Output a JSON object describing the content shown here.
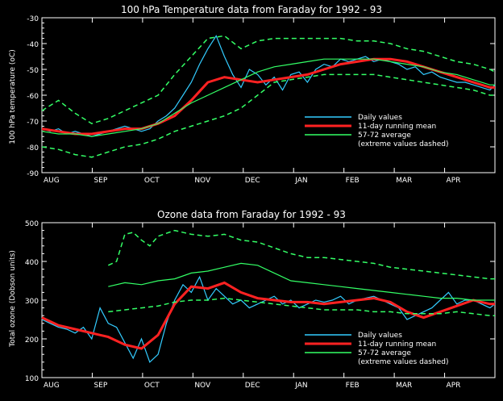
{
  "chart_data": [
    {
      "type": "line",
      "title": "100 hPa Temperature data from Faraday for 1992 - 93",
      "ylabel": "100 hPa temperature (oC)",
      "xlabel": "",
      "x_ticks": [
        "AUG",
        "SEP",
        "OCT",
        "NOV",
        "DEC",
        "JAN",
        "FEB",
        "MAR",
        "APR"
      ],
      "y_ticks": [
        "-30",
        "-40",
        "-50",
        "-60",
        "-70",
        "-80",
        "-90"
      ],
      "ylim": [
        -90,
        -30
      ],
      "xlim": [
        0,
        273
      ],
      "legend_position": "bottom-right",
      "legend": [
        {
          "label": "Daily values",
          "color": "#33ccff"
        },
        {
          "label": "11-day running mean",
          "color": "#ff2222"
        },
        {
          "label": "57-72 average",
          "color": "#33ff66"
        },
        {
          "label": "(extreme values dashed)",
          "color": ""
        }
      ],
      "series": [
        {
          "name": "Daily values",
          "color": "#33ccff",
          "x": [
            0,
            5,
            10,
            15,
            20,
            25,
            30,
            35,
            40,
            45,
            50,
            55,
            60,
            65,
            70,
            75,
            80,
            85,
            90,
            95,
            100,
            105,
            110,
            115,
            120,
            125,
            130,
            135,
            140,
            145,
            150,
            155,
            160,
            165,
            170,
            175,
            180,
            185,
            190,
            195,
            200,
            205,
            210,
            215,
            220,
            225,
            230,
            235,
            240,
            245,
            250,
            255,
            260,
            265,
            270,
            273
          ],
          "values": [
            -73,
            -74,
            -73,
            -75,
            -74,
            -75,
            -76,
            -75,
            -74,
            -73,
            -72,
            -73,
            -74,
            -73,
            -70,
            -68,
            -65,
            -60,
            -55,
            -48,
            -42,
            -37,
            -45,
            -52,
            -57,
            -50,
            -52,
            -56,
            -53,
            -58,
            -52,
            -51,
            -55,
            -50,
            -48,
            -49,
            -46,
            -47,
            -46,
            -45,
            -47,
            -46,
            -47,
            -48,
            -50,
            -49,
            -52,
            -51,
            -53,
            -54,
            -55,
            -55,
            -56,
            -57,
            -58,
            -56
          ]
        },
        {
          "name": "11-day running mean",
          "color": "#ff2222",
          "x": [
            0,
            10,
            20,
            30,
            40,
            50,
            60,
            70,
            80,
            90,
            100,
            110,
            120,
            130,
            140,
            150,
            160,
            170,
            180,
            190,
            200,
            210,
            220,
            230,
            240,
            250,
            260,
            270,
            273
          ],
          "values": [
            -73,
            -74,
            -75,
            -75,
            -74,
            -73,
            -73,
            -71,
            -68,
            -62,
            -55,
            -53,
            -54,
            -55,
            -54,
            -53,
            -52,
            -50,
            -48,
            -47,
            -46,
            -46,
            -47,
            -49,
            -51,
            -53,
            -55,
            -57,
            -57
          ]
        },
        {
          "name": "57-72 average",
          "color": "#33ff66",
          "x": [
            0,
            10,
            20,
            30,
            40,
            50,
            60,
            70,
            80,
            90,
            100,
            110,
            120,
            130,
            140,
            150,
            160,
            170,
            180,
            190,
            200,
            210,
            220,
            230,
            240,
            250,
            260,
            270,
            273
          ],
          "values": [
            -74,
            -75,
            -75,
            -76,
            -75,
            -74,
            -73,
            -71,
            -67,
            -63,
            -60,
            -57,
            -54,
            -51,
            -49,
            -48,
            -47,
            -46,
            -46,
            -46,
            -46,
            -47,
            -48,
            -49,
            -51,
            -52,
            -54,
            -56,
            -56
          ]
        },
        {
          "name": "57-72 max",
          "color": "#33ff66",
          "dashed": true,
          "x": [
            0,
            10,
            20,
            30,
            40,
            50,
            60,
            70,
            80,
            90,
            100,
            110,
            120,
            130,
            140,
            150,
            160,
            170,
            180,
            190,
            200,
            210,
            220,
            230,
            240,
            250,
            260,
            270,
            273
          ],
          "values": [
            -66,
            -62,
            -67,
            -71,
            -69,
            -66,
            -63,
            -60,
            -52,
            -45,
            -38,
            -37,
            -42,
            -39,
            -38,
            -38,
            -38,
            -38,
            -38,
            -39,
            -39,
            -40,
            -42,
            -43,
            -45,
            -47,
            -48,
            -50,
            -51
          ]
        },
        {
          "name": "57-72 min",
          "color": "#33ff66",
          "dashed": true,
          "x": [
            0,
            10,
            20,
            30,
            40,
            50,
            60,
            70,
            80,
            90,
            100,
            110,
            120,
            130,
            140,
            150,
            160,
            170,
            180,
            190,
            200,
            210,
            220,
            230,
            240,
            250,
            260,
            270,
            273
          ],
          "values": [
            -80,
            -81,
            -83,
            -84,
            -82,
            -80,
            -79,
            -77,
            -74,
            -72,
            -70,
            -68,
            -65,
            -60,
            -55,
            -54,
            -53,
            -52,
            -52,
            -52,
            -52,
            -53,
            -54,
            -55,
            -56,
            -57,
            -58,
            -60,
            -60
          ]
        }
      ]
    },
    {
      "type": "line",
      "title": "Ozone data from Faraday for 1992 - 93",
      "ylabel": "Total ozone (Dobson units)",
      "xlabel": "",
      "x_ticks": [
        "AUG",
        "SEP",
        "OCT",
        "NOV",
        "DEC",
        "JAN",
        "FEB",
        "MAR",
        "APR"
      ],
      "y_ticks": [
        "500",
        "400",
        "300",
        "200",
        "100"
      ],
      "ylim": [
        100,
        500
      ],
      "xlim": [
        0,
        273
      ],
      "legend_position": "bottom-right",
      "legend": [
        {
          "label": "Daily values",
          "color": "#33ccff"
        },
        {
          "label": "11-day running mean",
          "color": "#ff2222"
        },
        {
          "label": "57-72 average",
          "color": "#33ff66"
        },
        {
          "label": "(extreme values dashed)",
          "color": ""
        }
      ],
      "series": [
        {
          "name": "Daily values",
          "color": "#33ccff",
          "x": [
            0,
            5,
            10,
            15,
            20,
            25,
            30,
            35,
            40,
            45,
            50,
            55,
            60,
            65,
            70,
            75,
            80,
            85,
            90,
            95,
            100,
            105,
            110,
            115,
            120,
            125,
            130,
            135,
            140,
            145,
            150,
            155,
            160,
            165,
            170,
            175,
            180,
            185,
            190,
            195,
            200,
            205,
            210,
            215,
            220,
            225,
            230,
            235,
            240,
            245,
            250,
            255,
            260,
            265,
            270,
            273
          ],
          "values": [
            250,
            240,
            230,
            225,
            215,
            230,
            200,
            280,
            240,
            230,
            190,
            150,
            200,
            140,
            160,
            240,
            300,
            340,
            320,
            360,
            300,
            330,
            310,
            290,
            300,
            280,
            290,
            300,
            310,
            290,
            300,
            280,
            290,
            300,
            295,
            300,
            310,
            290,
            300,
            305,
            310,
            300,
            290,
            280,
            250,
            260,
            270,
            280,
            300,
            320,
            290,
            300,
            300,
            290,
            280,
            290
          ]
        },
        {
          "name": "11-day running mean",
          "color": "#ff2222",
          "x": [
            0,
            10,
            20,
            30,
            40,
            50,
            60,
            70,
            80,
            90,
            100,
            110,
            120,
            130,
            140,
            150,
            160,
            170,
            180,
            190,
            200,
            210,
            220,
            230,
            240,
            250,
            260,
            270,
            273
          ],
          "values": [
            255,
            235,
            225,
            215,
            205,
            185,
            175,
            210,
            290,
            335,
            330,
            345,
            320,
            305,
            300,
            295,
            295,
            290,
            295,
            300,
            305,
            295,
            270,
            255,
            270,
            285,
            300,
            290,
            290
          ]
        },
        {
          "name": "57-72 average",
          "color": "#33ff66",
          "x": [
            40,
            50,
            60,
            70,
            80,
            90,
            100,
            110,
            120,
            130,
            140,
            150,
            160,
            170,
            180,
            190,
            200,
            210,
            220,
            230,
            240,
            250,
            260,
            270,
            273
          ],
          "values": [
            335,
            345,
            340,
            350,
            355,
            370,
            375,
            385,
            395,
            390,
            370,
            350,
            345,
            340,
            335,
            330,
            325,
            320,
            315,
            310,
            305,
            305,
            300,
            300,
            300
          ]
        },
        {
          "name": "57-72 max",
          "color": "#33ff66",
          "dashed": true,
          "x": [
            40,
            45,
            50,
            55,
            60,
            65,
            70,
            80,
            90,
            100,
            110,
            120,
            130,
            140,
            150,
            160,
            170,
            180,
            190,
            200,
            210,
            220,
            230,
            240,
            250,
            260,
            270,
            273
          ],
          "values": [
            390,
            400,
            470,
            475,
            455,
            440,
            465,
            480,
            470,
            465,
            470,
            455,
            450,
            435,
            420,
            410,
            410,
            405,
            400,
            395,
            385,
            380,
            375,
            370,
            365,
            360,
            355,
            355
          ]
        },
        {
          "name": "57-72 min",
          "color": "#33ff66",
          "dashed": true,
          "x": [
            40,
            50,
            60,
            70,
            80,
            90,
            100,
            110,
            120,
            130,
            140,
            150,
            160,
            170,
            180,
            190,
            200,
            210,
            220,
            230,
            240,
            250,
            260,
            270,
            273
          ],
          "values": [
            270,
            275,
            280,
            285,
            295,
            300,
            300,
            305,
            300,
            295,
            290,
            285,
            280,
            275,
            275,
            275,
            270,
            270,
            265,
            265,
            265,
            270,
            265,
            260,
            260
          ]
        }
      ]
    }
  ]
}
